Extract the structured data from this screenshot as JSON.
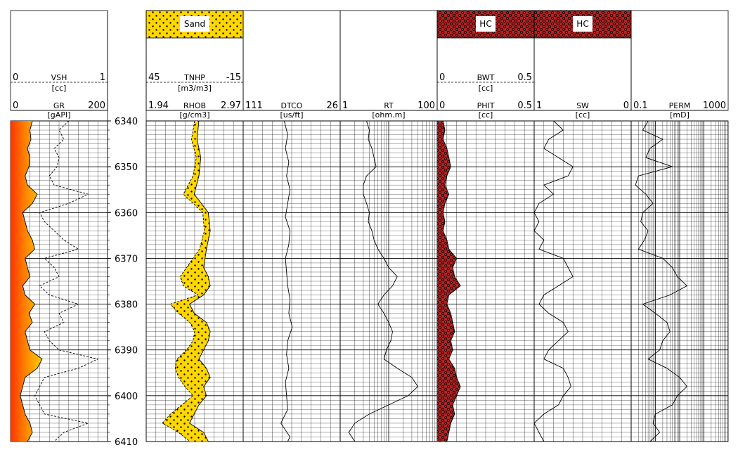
{
  "chart_data": {
    "type": "well_log",
    "depth_axis": {
      "range": [
        6340,
        6410
      ],
      "ticks": [
        "6340",
        "6350",
        "6360",
        "6370",
        "6380",
        "6390",
        "6400",
        "6410"
      ]
    },
    "tracks": [
      {
        "id": "gr",
        "headers": [
          {
            "name": "VSH",
            "unit": "[cc]",
            "min": "0",
            "max": "1",
            "style": "dashed"
          },
          {
            "name": "GR",
            "unit": "[gAPI]",
            "min": "0",
            "max": "200",
            "style": "solid"
          }
        ],
        "scale": "linear",
        "fill": "gr-color",
        "curves": {
          "GR": {
            "range": [
              0,
              200
            ],
            "depth": [
              6340,
              6342,
              6344,
              6346,
              6348,
              6350,
              6352,
              6354,
              6356,
              6358,
              6360,
              6362,
              6364,
              6366,
              6368,
              6370,
              6372,
              6374,
              6376,
              6378,
              6380,
              6382,
              6384,
              6386,
              6388,
              6390,
              6392,
              6394,
              6396,
              6398,
              6400,
              6402,
              6404,
              6406,
              6408,
              6410
            ],
            "values": [
              45,
              40,
              42,
              35,
              40,
              38,
              30,
              35,
              55,
              45,
              25,
              30,
              35,
              45,
              50,
              30,
              35,
              40,
              25,
              30,
              50,
              38,
              45,
              30,
              35,
              40,
              65,
              55,
              30,
              25,
              20,
              25,
              30,
              40,
              45,
              35
            ]
          },
          "VSH": {
            "range": [
              0,
              1
            ],
            "depth": [
              6340,
              6342,
              6344,
              6346,
              6348,
              6350,
              6352,
              6354,
              6356,
              6358,
              6360,
              6362,
              6364,
              6366,
              6368,
              6370,
              6372,
              6374,
              6376,
              6378,
              6380,
              6382,
              6384,
              6386,
              6388,
              6390,
              6392,
              6394,
              6396,
              6398,
              6400,
              6402,
              6404,
              6406,
              6408,
              6410
            ],
            "values": [
              0.6,
              0.5,
              0.55,
              0.45,
              0.5,
              0.48,
              0.4,
              0.45,
              0.8,
              0.6,
              0.3,
              0.35,
              0.45,
              0.55,
              0.7,
              0.35,
              0.45,
              0.5,
              0.3,
              0.4,
              0.7,
              0.5,
              0.55,
              0.35,
              0.4,
              0.5,
              0.9,
              0.7,
              0.35,
              0.3,
              0.25,
              0.3,
              0.35,
              0.8,
              0.55,
              0.45
            ]
          }
        }
      },
      {
        "id": "rhob",
        "fill_label": "Sand",
        "headers": [
          {
            "name": "TNHP",
            "unit": "[m3/m3]",
            "min": "45",
            "max": "-15",
            "style": "dashed"
          },
          {
            "name": "RHOB",
            "unit": "[g/cm3]",
            "min": "1.94",
            "max": "2.97",
            "style": "solid"
          }
        ],
        "scale": "linear",
        "curves": {
          "RHOB": {
            "range": [
              1.94,
              2.97
            ],
            "depth": [
              6340,
              6344,
              6348,
              6352,
              6356,
              6360,
              6364,
              6368,
              6372,
              6374,
              6376,
              6378,
              6380,
              6382,
              6384,
              6386,
              6388,
              6390,
              6392,
              6394,
              6396,
              6398,
              6400,
              6402,
              6404,
              6406,
              6408,
              6410
            ],
            "values": [
              2.5,
              2.48,
              2.52,
              2.5,
              2.45,
              2.6,
              2.62,
              2.58,
              2.55,
              2.6,
              2.62,
              2.55,
              2.4,
              2.45,
              2.58,
              2.62,
              2.6,
              2.55,
              2.5,
              2.58,
              2.62,
              2.55,
              2.58,
              2.5,
              2.45,
              2.4,
              2.55,
              2.6
            ]
          },
          "TNHP": {
            "range": [
              45,
              -15
            ],
            "depth": [
              6340,
              6344,
              6348,
              6352,
              6356,
              6360,
              6364,
              6368,
              6372,
              6374,
              6376,
              6378,
              6380,
              6382,
              6384,
              6386,
              6388,
              6390,
              6392,
              6394,
              6396,
              6398,
              6400,
              6402,
              6404,
              6406,
              6408,
              6410
            ],
            "values": [
              15,
              17,
              14,
              16,
              22,
              10,
              9,
              12,
              20,
              24,
              22,
              13,
              30,
              25,
              18,
              15,
              16,
              20,
              26,
              27,
              25,
              21,
              16,
              23,
              30,
              35,
              25,
              18
            ]
          }
        }
      },
      {
        "id": "dtco",
        "headers": [
          {
            "name": "DTCO",
            "unit": "[us/ft]",
            "min": "111",
            "max": "26",
            "style": "solid"
          }
        ],
        "scale": "linear",
        "curves": {
          "DTCO": {
            "range": [
              111,
              26
            ],
            "depth": [
              6340,
              6343,
              6346,
              6349,
              6352,
              6355,
              6358,
              6361,
              6364,
              6367,
              6370,
              6373,
              6376,
              6379,
              6382,
              6385,
              6388,
              6391,
              6394,
              6397,
              6400,
              6403,
              6406,
              6409,
              6410
            ],
            "values": [
              75,
              72,
              74,
              71,
              73,
              70,
              72,
              74,
              70,
              71,
              74,
              73,
              72,
              70,
              71,
              68,
              72,
              73,
              71,
              74,
              73,
              72,
              78,
              70,
              72
            ]
          }
        }
      },
      {
        "id": "rt",
        "headers": [
          {
            "name": "RT",
            "unit": "[ohm.m]",
            "min": "1",
            "max": "100",
            "style": "solid"
          }
        ],
        "scale": "log",
        "curves": {
          "RT": {
            "range": [
              1,
              100
            ],
            "depth": [
              6340,
              6342,
              6344,
              6346,
              6348,
              6350,
              6352,
              6354,
              6356,
              6358,
              6360,
              6362,
              6364,
              6366,
              6368,
              6370,
              6372,
              6374,
              6376,
              6378,
              6380,
              6382,
              6384,
              6386,
              6388,
              6390,
              6392,
              6394,
              6396,
              6398,
              6400,
              6402,
              6404,
              6406,
              6408,
              6410
            ],
            "values": [
              3.5,
              4,
              3.8,
              4.5,
              5,
              5.5,
              3.5,
              3,
              3,
              3.5,
              4,
              3.8,
              4.5,
              5,
              6,
              8,
              10,
              15,
              12,
              8,
              6,
              8,
              10,
              12,
              11,
              9,
              8,
              15,
              30,
              40,
              25,
              10,
              4,
              2,
              1.5,
              2
            ]
          }
        }
      },
      {
        "id": "phit",
        "fill_label": "HC",
        "headers": [
          {
            "name": "BWT",
            "unit": "[cc]",
            "min": "0",
            "max": "0.5",
            "style": "dashed"
          },
          {
            "name": "PHIT",
            "unit": "[cc]",
            "min": "0",
            "max": "0.5",
            "style": "solid"
          }
        ],
        "scale": "linear",
        "curves": {
          "PHIT": {
            "range": [
              0,
              0.5
            ],
            "depth": [
              6340,
              6342,
              6344,
              6346,
              6348,
              6350,
              6352,
              6354,
              6356,
              6358,
              6360,
              6362,
              6364,
              6366,
              6368,
              6370,
              6372,
              6374,
              6376,
              6378,
              6380,
              6382,
              6384,
              6386,
              6388,
              6390,
              6392,
              6394,
              6396,
              6398,
              6400,
              6402,
              6404,
              6406,
              6408,
              6410
            ],
            "values": [
              0.03,
              0.04,
              0.03,
              0.05,
              0.06,
              0.07,
              0.05,
              0.04,
              0.06,
              0.04,
              0.03,
              0.04,
              0.03,
              0.05,
              0.06,
              0.1,
              0.08,
              0.09,
              0.12,
              0.06,
              0.05,
              0.07,
              0.08,
              0.09,
              0.07,
              0.08,
              0.06,
              0.09,
              0.1,
              0.12,
              0.1,
              0.08,
              0.09,
              0.07,
              0.06,
              0.05
            ]
          }
        }
      },
      {
        "id": "sw",
        "fill_label": "HC",
        "headers": [
          {
            "name": "SW",
            "unit": "[cc]",
            "min": "1",
            "max": "0",
            "style": "solid"
          }
        ],
        "scale": "linear",
        "curves": {
          "SW": {
            "range": [
              1,
              0
            ],
            "depth": [
              6340,
              6342,
              6344,
              6346,
              6348,
              6350,
              6352,
              6354,
              6356,
              6358,
              6360,
              6362,
              6364,
              6366,
              6368,
              6370,
              6372,
              6374,
              6376,
              6378,
              6380,
              6382,
              6384,
              6386,
              6388,
              6390,
              6392,
              6394,
              6396,
              6398,
              6400,
              6402,
              6404,
              6406,
              6408,
              6410
            ],
            "values": [
              0.8,
              0.7,
              0.85,
              0.9,
              0.75,
              0.6,
              0.65,
              0.9,
              0.8,
              0.95,
              1,
              0.95,
              1,
              0.9,
              0.95,
              0.7,
              0.65,
              0.6,
              0.75,
              0.9,
              0.95,
              0.85,
              0.7,
              0.65,
              0.75,
              0.85,
              0.9,
              0.7,
              0.65,
              0.62,
              0.7,
              0.75,
              0.9,
              1,
              0.95,
              0.9
            ]
          }
        }
      },
      {
        "id": "perm",
        "headers": [
          {
            "name": "PERM",
            "unit": "[mD]",
            "min": "0.1",
            "max": "1000",
            "style": "solid"
          }
        ],
        "scale": "log",
        "curves": {
          "PERM": {
            "range": [
              0.1,
              1000
            ],
            "depth": [
              6340,
              6342,
              6344,
              6346,
              6348,
              6350,
              6352,
              6354,
              6356,
              6358,
              6360,
              6362,
              6364,
              6366,
              6368,
              6370,
              6372,
              6374,
              6376,
              6378,
              6380,
              6382,
              6384,
              6386,
              6388,
              6390,
              6392,
              6394,
              6396,
              6398,
              6400,
              6402,
              6404,
              6406,
              6408,
              6410
            ],
            "values": [
              0.5,
              0.3,
              2,
              0.6,
              0.4,
              5,
              0.2,
              0.15,
              0.4,
              0.8,
              0.3,
              0.25,
              0.5,
              0.35,
              0.2,
              2,
              5,
              8,
              20,
              4,
              0.3,
              1,
              3,
              4,
              2,
              1.5,
              0.5,
              3,
              10,
              20,
              8,
              5,
              1,
              0.8,
              1.5,
              0.6
            ]
          }
        }
      }
    ]
  }
}
